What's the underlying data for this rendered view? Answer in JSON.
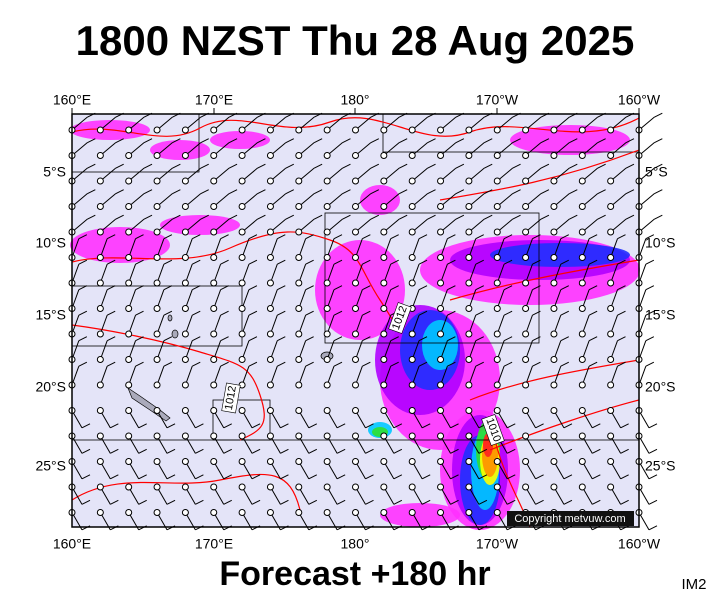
{
  "header": {
    "title": "1800 NZST Thu 28 Aug 2025"
  },
  "map": {
    "lon_labels": [
      "160°E",
      "170°E",
      "180°",
      "170°W",
      "160°W"
    ],
    "lat_labels": [
      "5°S",
      "10°S",
      "15°S",
      "20°S",
      "25°S"
    ],
    "isobar_labels": [
      "1012",
      "1012",
      "1010"
    ]
  },
  "footer": {
    "forecast": "Forecast +180 hr",
    "copyright": "Copyright metvuw.com",
    "id": "IM2"
  }
}
